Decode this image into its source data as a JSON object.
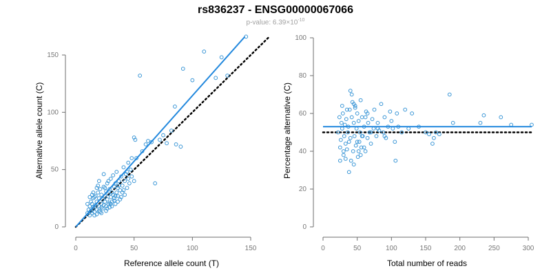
{
  "title": "rs836237 - ENSG00000067066",
  "subtitle": {
    "label": "p-value: 6.39",
    "times": "×",
    "base": "10",
    "exponent": "-10"
  },
  "colors": {
    "points": "#3a96d6",
    "fit_line": "#2288dd",
    "reference_line": "#000000",
    "axis": "#6e6e6e",
    "tick_text": "#777777",
    "label_text": "#000000"
  },
  "chart_data": [
    {
      "type": "scatter",
      "title": "",
      "xlabel": "Reference allele count (T)",
      "ylabel": "Alternative allele count (C)",
      "xlim": [
        0,
        150
      ],
      "ylim": [
        0,
        150
      ],
      "xticks": [
        0,
        50,
        100,
        150
      ],
      "yticks": [
        0,
        50,
        100,
        150
      ],
      "grid": false,
      "fit_line": {
        "from": [
          0,
          0
        ],
        "to": [
          145,
          166
        ],
        "style": "solid"
      },
      "reference_line": {
        "from": [
          0,
          0
        ],
        "to": [
          165,
          165
        ],
        "style": "dotted"
      },
      "points": [
        [
          10,
          12
        ],
        [
          11,
          15
        ],
        [
          12,
          10
        ],
        [
          12,
          18
        ],
        [
          13,
          14
        ],
        [
          14,
          20
        ],
        [
          14,
          12
        ],
        [
          15,
          17
        ],
        [
          15,
          25
        ],
        [
          16,
          13
        ],
        [
          17,
          19
        ],
        [
          17,
          27
        ],
        [
          18,
          15
        ],
        [
          18,
          22
        ],
        [
          19,
          30
        ],
        [
          20,
          18
        ],
        [
          20,
          25
        ],
        [
          21,
          13
        ],
        [
          21,
          33
        ],
        [
          22,
          20
        ],
        [
          22,
          28
        ],
        [
          23,
          16
        ],
        [
          23,
          24
        ],
        [
          24,
          35
        ],
        [
          24,
          19
        ],
        [
          25,
          27
        ],
        [
          25,
          22
        ],
        [
          26,
          31
        ],
        [
          26,
          14
        ],
        [
          27,
          24
        ],
        [
          27,
          38
        ],
        [
          28,
          20
        ],
        [
          28,
          29
        ],
        [
          29,
          33
        ],
        [
          29,
          17
        ],
        [
          30,
          26
        ],
        [
          30,
          42
        ],
        [
          31,
          22
        ],
        [
          31,
          30
        ],
        [
          32,
          28
        ],
        [
          32,
          45
        ],
        [
          33,
          25
        ],
        [
          33,
          35
        ],
        [
          34,
          20
        ],
        [
          34,
          38
        ],
        [
          35,
          30
        ],
        [
          35,
          48
        ],
        [
          36,
          27
        ],
        [
          36,
          34
        ],
        [
          37,
          40
        ],
        [
          38,
          24
        ],
        [
          38,
          32
        ],
        [
          39,
          44
        ],
        [
          40,
          30
        ],
        [
          40,
          36
        ],
        [
          41,
          52
        ],
        [
          42,
          28
        ],
        [
          42,
          40
        ],
        [
          43,
          46
        ],
        [
          44,
          34
        ],
        [
          45,
          56
        ],
        [
          45,
          42
        ],
        [
          46,
          38
        ],
        [
          47,
          50
        ],
        [
          48,
          44
        ],
        [
          48,
          60
        ],
        [
          50,
          40
        ],
        [
          50,
          78
        ],
        [
          51,
          76
        ],
        [
          52,
          60
        ],
        [
          55,
          132
        ],
        [
          57,
          66
        ],
        [
          60,
          72
        ],
        [
          62,
          75
        ],
        [
          65,
          74
        ],
        [
          68,
          38
        ],
        [
          72,
          76
        ],
        [
          75,
          80
        ],
        [
          78,
          73
        ],
        [
          82,
          84
        ],
        [
          85,
          105
        ],
        [
          86,
          72
        ],
        [
          90,
          70
        ],
        [
          92,
          138
        ],
        [
          100,
          128
        ],
        [
          110,
          153
        ],
        [
          120,
          130
        ],
        [
          125,
          148
        ],
        [
          130,
          132
        ],
        [
          146,
          166
        ],
        [
          10,
          20
        ],
        [
          13,
          22
        ],
        [
          16,
          26
        ],
        [
          19,
          36
        ],
        [
          22,
          17
        ],
        [
          25,
          34
        ],
        [
          28,
          40
        ],
        [
          31,
          18
        ],
        [
          34,
          27
        ],
        [
          15,
          30
        ],
        [
          18,
          34
        ],
        [
          20,
          40
        ],
        [
          24,
          46
        ],
        [
          27,
          16
        ],
        [
          30,
          20
        ],
        [
          36,
          22
        ],
        [
          39,
          26
        ],
        [
          41,
          32
        ],
        [
          44,
          48
        ],
        [
          12,
          26
        ],
        [
          14,
          28
        ],
        [
          16,
          10
        ],
        [
          18,
          11
        ],
        [
          20,
          14
        ],
        [
          22,
          12
        ],
        [
          26,
          18
        ],
        [
          29,
          21
        ],
        [
          33,
          23
        ],
        [
          37,
          36
        ]
      ]
    },
    {
      "type": "scatter",
      "title": "",
      "xlabel": "Total number of reads",
      "ylabel": "Percentage alternative (C)",
      "xlim": [
        0,
        300
      ],
      "ylim": [
        0,
        100
      ],
      "xticks": [
        0,
        50,
        100,
        150,
        200,
        250,
        300
      ],
      "yticks": [
        0,
        20,
        40,
        60,
        80,
        100
      ],
      "grid": false,
      "fit_line": {
        "y": 53,
        "x_range": [
          0,
          305
        ],
        "style": "solid"
      },
      "reference_line": {
        "y": 50,
        "x_range": [
          0,
          305
        ],
        "style": "dotted"
      },
      "points": [
        [
          22,
          50
        ],
        [
          24,
          58
        ],
        [
          25,
          42
        ],
        [
          26,
          46
        ],
        [
          27,
          55
        ],
        [
          28,
          52
        ],
        [
          29,
          60
        ],
        [
          30,
          38
        ],
        [
          31,
          48
        ],
        [
          32,
          54
        ],
        [
          33,
          44
        ],
        [
          34,
          57
        ],
        [
          35,
          41
        ],
        [
          36,
          50
        ],
        [
          37,
          53
        ],
        [
          38,
          29
        ],
        [
          39,
          62
        ],
        [
          40,
          47
        ],
        [
          41,
          35
        ],
        [
          42,
          58
        ],
        [
          43,
          66
        ],
        [
          44,
          40
        ],
        [
          45,
          55
        ],
        [
          46,
          48
        ],
        [
          47,
          64
        ],
        [
          48,
          43
        ],
        [
          49,
          52
        ],
        [
          50,
          60
        ],
        [
          51,
          37
        ],
        [
          52,
          56
        ],
        [
          53,
          45
        ],
        [
          54,
          50
        ],
        [
          55,
          67
        ],
        [
          56,
          42
        ],
        [
          57,
          58
        ],
        [
          58,
          48
        ],
        [
          60,
          53
        ],
        [
          62,
          40
        ],
        [
          63,
          61
        ],
        [
          65,
          47
        ],
        [
          66,
          55
        ],
        [
          68,
          50
        ],
        [
          70,
          44
        ],
        [
          72,
          57
        ],
        [
          74,
          52
        ],
        [
          75,
          62
        ],
        [
          78,
          48
        ],
        [
          80,
          55
        ],
        [
          82,
          51
        ],
        [
          85,
          65
        ],
        [
          88,
          50
        ],
        [
          90,
          58
        ],
        [
          92,
          47
        ],
        [
          95,
          53
        ],
        [
          98,
          61
        ],
        [
          100,
          56
        ],
        [
          102,
          52
        ],
        [
          105,
          45
        ],
        [
          106,
          35
        ],
        [
          108,
          60
        ],
        [
          110,
          53
        ],
        [
          115,
          50
        ],
        [
          120,
          62
        ],
        [
          125,
          52
        ],
        [
          130,
          60
        ],
        [
          140,
          53
        ],
        [
          150,
          50
        ],
        [
          155,
          49
        ],
        [
          160,
          44
        ],
        [
          162,
          47
        ],
        [
          165,
          50
        ],
        [
          170,
          49
        ],
        [
          185,
          70
        ],
        [
          190,
          55
        ],
        [
          230,
          55
        ],
        [
          235,
          59
        ],
        [
          260,
          58
        ],
        [
          275,
          54
        ],
        [
          305,
          54
        ],
        [
          25,
          35
        ],
        [
          30,
          40
        ],
        [
          35,
          62
        ],
        [
          40,
          72
        ],
        [
          45,
          65
        ],
        [
          50,
          45
        ],
        [
          55,
          38
        ],
        [
          60,
          42
        ],
        [
          65,
          60
        ],
        [
          28,
          64
        ],
        [
          33,
          36
        ],
        [
          38,
          45
        ],
        [
          42,
          70
        ],
        [
          47,
          63
        ],
        [
          52,
          40
        ],
        [
          57,
          48
        ],
        [
          62,
          58
        ],
        [
          70,
          50
        ],
        [
          80,
          52
        ],
        [
          90,
          48
        ],
        [
          45,
          33
        ]
      ]
    }
  ]
}
